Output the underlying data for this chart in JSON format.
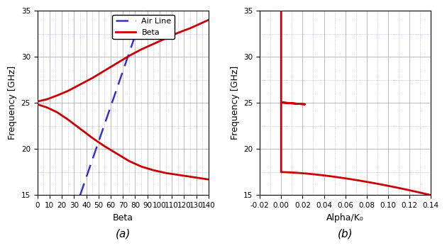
{
  "fig_width": 6.3,
  "fig_height": 3.5,
  "dpi": 100,
  "background_color": "#ffffff",
  "plot_a": {
    "xlim": [
      0,
      140
    ],
    "ylim": [
      15,
      35
    ],
    "xlabel": "Beta",
    "ylabel": "Frequency [GHz]",
    "xticks": [
      0,
      10,
      20,
      30,
      40,
      50,
      60,
      70,
      80,
      90,
      100,
      110,
      120,
      130,
      140
    ],
    "yticks": [
      15,
      20,
      25,
      30,
      35
    ],
    "label_a": "(a)",
    "grid_major_color": "#b0b0b0",
    "grid_minor_color": "#7777cc",
    "airline_color": "#3333cc",
    "beta_color": "#cc0000",
    "legend_labels": [
      "Air Line",
      "Beta"
    ],
    "airline_x": [
      35.0,
      87.0
    ],
    "airline_y": [
      15.0,
      35.0
    ],
    "beta_upper_x": [
      0,
      8,
      16,
      25,
      35,
      45,
      55,
      65,
      75,
      85,
      95,
      105,
      115,
      125,
      135,
      140
    ],
    "beta_upper_y": [
      25.15,
      25.4,
      25.8,
      26.3,
      27.0,
      27.7,
      28.5,
      29.3,
      30.1,
      30.8,
      31.4,
      32.0,
      32.6,
      33.1,
      33.7,
      34.0
    ],
    "beta_lower_x": [
      0,
      8,
      16,
      25,
      35,
      45,
      55,
      65,
      75,
      85,
      95,
      105,
      115,
      125,
      135,
      140
    ],
    "beta_lower_y": [
      24.85,
      24.5,
      24.0,
      23.2,
      22.2,
      21.2,
      20.3,
      19.5,
      18.7,
      18.1,
      17.7,
      17.4,
      17.2,
      17.0,
      16.8,
      16.7
    ]
  },
  "plot_b": {
    "xlim": [
      -0.02,
      0.14
    ],
    "ylim": [
      15,
      35
    ],
    "xlabel": "Alpha/K₀",
    "ylabel": "Frequency [GHz]",
    "xticks": [
      -0.02,
      0.0,
      0.02,
      0.04,
      0.06,
      0.08,
      0.1,
      0.12,
      0.14
    ],
    "yticks": [
      15,
      20,
      25,
      30,
      35
    ],
    "label_b": "(b)",
    "grid_major_color": "#b0b0b0",
    "grid_minor_color": "#7777cc",
    "alpha_color": "#cc0000"
  }
}
